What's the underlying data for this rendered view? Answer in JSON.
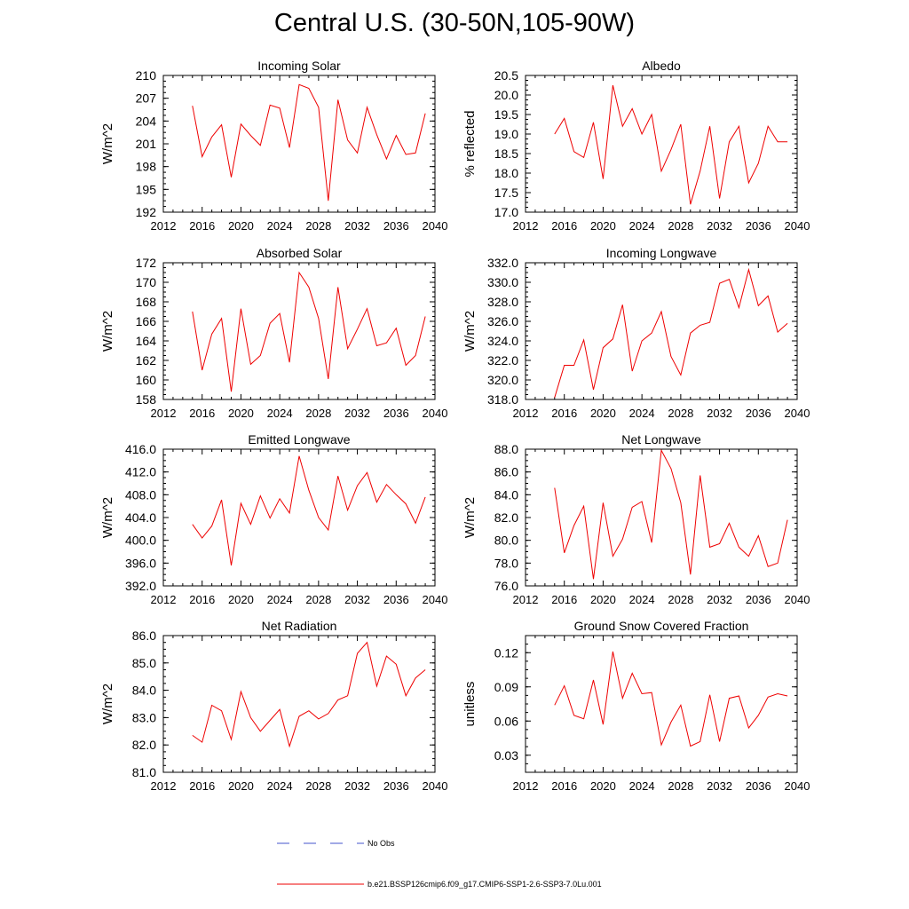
{
  "title": "Central U.S. (30-50N,105-90W)",
  "legend": {
    "obs_label": "No Obs",
    "obs_color": "#4455cc",
    "model_label": "b.e21.BSSP126cmip6.f09_g17.CMIP6-SSP1-2.6-SSP3-7.0Lu.001",
    "model_color": "#ee0000"
  },
  "chart_data": [
    {
      "type": "line",
      "title": "Incoming Solar",
      "ylabel": "W/m^2",
      "xlim": [
        2012,
        2040
      ],
      "xticks": [
        "2012",
        "2016",
        "2020",
        "2024",
        "2028",
        "2032",
        "2036",
        "2040"
      ],
      "xtick_values": [
        2012,
        2016,
        2020,
        2024,
        2028,
        2032,
        2036,
        2040
      ],
      "ylim": [
        192,
        210
      ],
      "yticks": [
        "192",
        "195",
        "198",
        "201",
        "204",
        "207",
        "210"
      ],
      "ytick_values": [
        192,
        195,
        198,
        201,
        204,
        207,
        210
      ],
      "x": [
        2015,
        2016,
        2017,
        2018,
        2019,
        2020,
        2021,
        2022,
        2023,
        2024,
        2025,
        2026,
        2027,
        2028,
        2029,
        2030,
        2031,
        2032,
        2033,
        2034,
        2035,
        2036,
        2037,
        2038,
        2039
      ],
      "series": [
        {
          "values": [
            206.0,
            199.3,
            201.9,
            203.5,
            196.6,
            203.6,
            202.1,
            200.8,
            206.1,
            205.7,
            200.5,
            208.8,
            208.3,
            205.8,
            193.5,
            206.8,
            201.5,
            199.8,
            205.8,
            202.2,
            199.0,
            202.1,
            199.6,
            199.8,
            205.0
          ]
        }
      ]
    },
    {
      "type": "line",
      "title": "Albedo",
      "ylabel": "% reflected",
      "xlim": [
        2012,
        2040
      ],
      "xticks": [
        "2012",
        "2016",
        "2020",
        "2024",
        "2028",
        "2032",
        "2036",
        "2040"
      ],
      "xtick_values": [
        2012,
        2016,
        2020,
        2024,
        2028,
        2032,
        2036,
        2040
      ],
      "ylim": [
        17.0,
        20.5
      ],
      "yticks": [
        "17.0",
        "17.5",
        "18.0",
        "18.5",
        "19.0",
        "19.5",
        "20.0",
        "20.5"
      ],
      "ytick_values": [
        17.0,
        17.5,
        18.0,
        18.5,
        19.0,
        19.5,
        20.0,
        20.5
      ],
      "x": [
        2015,
        2016,
        2017,
        2018,
        2019,
        2020,
        2021,
        2022,
        2023,
        2024,
        2025,
        2026,
        2027,
        2028,
        2029,
        2030,
        2031,
        2032,
        2033,
        2034,
        2035,
        2036,
        2037,
        2038,
        2039
      ],
      "series": [
        {
          "values": [
            19.0,
            19.4,
            18.55,
            18.4,
            19.3,
            17.85,
            20.25,
            19.2,
            19.65,
            19.0,
            19.5,
            18.05,
            18.6,
            19.25,
            17.2,
            18.05,
            19.2,
            17.35,
            18.8,
            19.2,
            17.75,
            18.25,
            19.2,
            18.8,
            18.8
          ]
        }
      ]
    },
    {
      "type": "line",
      "title": "Absorbed Solar",
      "ylabel": "W/m^2",
      "xlim": [
        2012,
        2040
      ],
      "xticks": [
        "2012",
        "2016",
        "2020",
        "2024",
        "2028",
        "2032",
        "2036",
        "2040"
      ],
      "xtick_values": [
        2012,
        2016,
        2020,
        2024,
        2028,
        2032,
        2036,
        2040
      ],
      "ylim": [
        158,
        172
      ],
      "yticks": [
        "158",
        "160",
        "162",
        "164",
        "166",
        "168",
        "170",
        "172"
      ],
      "ytick_values": [
        158,
        160,
        162,
        164,
        166,
        168,
        170,
        172
      ],
      "x": [
        2015,
        2016,
        2017,
        2018,
        2019,
        2020,
        2021,
        2022,
        2023,
        2024,
        2025,
        2026,
        2027,
        2028,
        2029,
        2030,
        2031,
        2032,
        2033,
        2034,
        2035,
        2036,
        2037,
        2038,
        2039
      ],
      "series": [
        {
          "values": [
            167.0,
            161.0,
            164.7,
            166.3,
            158.8,
            167.3,
            161.6,
            162.5,
            165.8,
            166.8,
            161.8,
            171.0,
            169.5,
            166.3,
            160.1,
            169.5,
            163.2,
            165.2,
            167.3,
            163.5,
            163.8,
            165.3,
            161.5,
            162.5,
            166.5
          ]
        }
      ]
    },
    {
      "type": "line",
      "title": "Incoming Longwave",
      "ylabel": "W/m^2",
      "xlim": [
        2012,
        2040
      ],
      "xticks": [
        "2012",
        "2016",
        "2020",
        "2024",
        "2028",
        "2032",
        "2036",
        "2040"
      ],
      "xtick_values": [
        2012,
        2016,
        2020,
        2024,
        2028,
        2032,
        2036,
        2040
      ],
      "ylim": [
        318,
        332
      ],
      "yticks": [
        "318.0",
        "320.0",
        "322.0",
        "324.0",
        "326.0",
        "328.0",
        "330.0",
        "332.0"
      ],
      "ytick_values": [
        318,
        320,
        322,
        324,
        326,
        328,
        330,
        332
      ],
      "x": [
        2015,
        2016,
        2017,
        2018,
        2019,
        2020,
        2021,
        2022,
        2023,
        2024,
        2025,
        2026,
        2027,
        2028,
        2029,
        2030,
        2031,
        2032,
        2033,
        2034,
        2035,
        2036,
        2037,
        2038,
        2039
      ],
      "series": [
        {
          "values": [
            318.2,
            321.5,
            321.5,
            324.1,
            319.0,
            323.3,
            324.2,
            327.7,
            320.9,
            324.0,
            324.8,
            327.0,
            322.4,
            320.5,
            324.8,
            325.6,
            325.9,
            329.9,
            330.3,
            327.4,
            331.3,
            327.6,
            328.6,
            324.9,
            325.8
          ]
        }
      ]
    },
    {
      "type": "line",
      "title": "Emitted Longwave",
      "ylabel": "W/m^2",
      "xlim": [
        2012,
        2040
      ],
      "xticks": [
        "2012",
        "2016",
        "2020",
        "2024",
        "2028",
        "2032",
        "2036",
        "2040"
      ],
      "xtick_values": [
        2012,
        2016,
        2020,
        2024,
        2028,
        2032,
        2036,
        2040
      ],
      "ylim": [
        392,
        416
      ],
      "yticks": [
        "392.0",
        "396.0",
        "400.0",
        "404.0",
        "408.0",
        "412.0",
        "416.0"
      ],
      "ytick_values": [
        392,
        396,
        400,
        404,
        408,
        412,
        416
      ],
      "x": [
        2015,
        2016,
        2017,
        2018,
        2019,
        2020,
        2021,
        2022,
        2023,
        2024,
        2025,
        2026,
        2027,
        2028,
        2029,
        2030,
        2031,
        2032,
        2033,
        2034,
        2035,
        2036,
        2037,
        2038,
        2039
      ],
      "series": [
        {
          "values": [
            402.8,
            400.4,
            402.5,
            407.1,
            395.6,
            406.5,
            402.8,
            407.8,
            403.9,
            407.3,
            404.8,
            414.8,
            408.8,
            404.0,
            401.8,
            411.3,
            405.3,
            409.6,
            411.9,
            406.7,
            409.8,
            408.0,
            406.4,
            403.0,
            407.6
          ]
        }
      ]
    },
    {
      "type": "line",
      "title": "Net Longwave",
      "ylabel": "W/m^2",
      "xlim": [
        2012,
        2040
      ],
      "xticks": [
        "2012",
        "2016",
        "2020",
        "2024",
        "2028",
        "2032",
        "2036",
        "2040"
      ],
      "xtick_values": [
        2012,
        2016,
        2020,
        2024,
        2028,
        2032,
        2036,
        2040
      ],
      "ylim": [
        76,
        88
      ],
      "yticks": [
        "76.0",
        "78.0",
        "80.0",
        "82.0",
        "84.0",
        "86.0",
        "88.0"
      ],
      "ytick_values": [
        76,
        78,
        80,
        82,
        84,
        86,
        88
      ],
      "x": [
        2015,
        2016,
        2017,
        2018,
        2019,
        2020,
        2021,
        2022,
        2023,
        2024,
        2025,
        2026,
        2027,
        2028,
        2029,
        2030,
        2031,
        2032,
        2033,
        2034,
        2035,
        2036,
        2037,
        2038,
        2039
      ],
      "series": [
        {
          "values": [
            84.6,
            78.9,
            81.3,
            83.0,
            76.6,
            83.3,
            78.6,
            80.1,
            82.9,
            83.4,
            79.8,
            87.9,
            86.3,
            83.3,
            77.0,
            85.7,
            79.4,
            79.7,
            81.5,
            79.4,
            78.6,
            80.4,
            77.7,
            78.0,
            81.8
          ]
        }
      ]
    },
    {
      "type": "line",
      "title": "Net Radiation",
      "ylabel": "W/m^2",
      "xlim": [
        2012,
        2040
      ],
      "xticks": [
        "2012",
        "2016",
        "2020",
        "2024",
        "2028",
        "2032",
        "2036",
        "2040"
      ],
      "xtick_values": [
        2012,
        2016,
        2020,
        2024,
        2028,
        2032,
        2036,
        2040
      ],
      "ylim": [
        81,
        86
      ],
      "yticks": [
        "81.0",
        "82.0",
        "83.0",
        "84.0",
        "85.0",
        "86.0"
      ],
      "ytick_values": [
        81,
        82,
        83,
        84,
        85,
        86
      ],
      "x": [
        2015,
        2016,
        2017,
        2018,
        2019,
        2020,
        2021,
        2022,
        2023,
        2024,
        2025,
        2026,
        2027,
        2028,
        2029,
        2030,
        2031,
        2032,
        2033,
        2034,
        2035,
        2036,
        2037,
        2038,
        2039
      ],
      "series": [
        {
          "values": [
            82.35,
            82.1,
            83.45,
            83.25,
            82.2,
            83.95,
            83.0,
            82.5,
            82.9,
            83.3,
            81.95,
            83.05,
            83.25,
            82.95,
            83.15,
            83.65,
            83.8,
            85.35,
            85.75,
            84.15,
            85.25,
            84.95,
            83.8,
            84.45,
            84.75
          ]
        }
      ]
    },
    {
      "type": "line",
      "title": "Ground Snow Covered Fraction",
      "ylabel": "unitless",
      "xlim": [
        2012,
        2040
      ],
      "xticks": [
        "2012",
        "2016",
        "2020",
        "2024",
        "2028",
        "2032",
        "2036",
        "2040"
      ],
      "xtick_values": [
        2012,
        2016,
        2020,
        2024,
        2028,
        2032,
        2036,
        2040
      ],
      "ylim": [
        0.015,
        0.135
      ],
      "yticks": [
        "0.03",
        "0.06",
        "0.09",
        "0.12"
      ],
      "ytick_values": [
        0.03,
        0.06,
        0.09,
        0.12
      ],
      "x": [
        2015,
        2016,
        2017,
        2018,
        2019,
        2020,
        2021,
        2022,
        2023,
        2024,
        2025,
        2026,
        2027,
        2028,
        2029,
        2030,
        2031,
        2032,
        2033,
        2034,
        2035,
        2036,
        2037,
        2038,
        2039
      ],
      "series": [
        {
          "values": [
            0.074,
            0.091,
            0.065,
            0.062,
            0.096,
            0.057,
            0.121,
            0.08,
            0.102,
            0.084,
            0.085,
            0.039,
            0.059,
            0.074,
            0.038,
            0.042,
            0.083,
            0.042,
            0.08,
            0.082,
            0.054,
            0.065,
            0.081,
            0.084,
            0.082
          ]
        }
      ]
    }
  ]
}
